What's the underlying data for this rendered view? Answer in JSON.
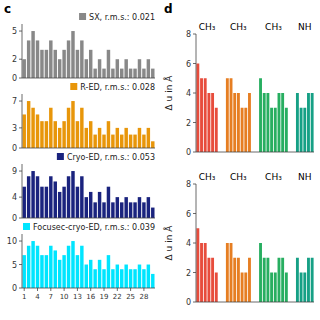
{
  "chart_data": [
    {
      "type": "bar",
      "title": "c",
      "categories": [
        null,
        null,
        null,
        null,
        null,
        null,
        null,
        null,
        null,
        null,
        null,
        null,
        null,
        null,
        null,
        null,
        null,
        null,
        null,
        null,
        null,
        null,
        null,
        null,
        null,
        null,
        null,
        null,
        null,
        null
      ],
      "series": [
        {
          "name": "SX, r.m.s.: 0.021",
          "color": "#888888",
          "values": [
            2,
            4,
            5,
            4,
            3,
            3,
            4,
            3,
            2,
            3,
            4,
            5,
            3,
            4,
            2,
            3,
            1,
            2,
            1,
            3,
            1,
            2,
            1,
            2,
            1,
            1,
            2,
            1,
            2,
            1
          ]
        }
      ],
      "ylim": [
        0,
        5.75
      ],
      "yticks": [
        0,
        2,
        5
      ],
      "legend": "upper right",
      "tick_labels": "y"
    },
    {
      "type": "bar",
      "categories": [
        null,
        null,
        null,
        null,
        null,
        null,
        null,
        null,
        null,
        null,
        null,
        null,
        null,
        null,
        null,
        null,
        null,
        null,
        null,
        null,
        null,
        null,
        null,
        null,
        null,
        null,
        null,
        null,
        null,
        null
      ],
      "series": [
        {
          "name": "R-ED, r.m.s.: 0.028",
          "color": "#E8960A",
          "values": [
            5,
            7,
            6,
            5,
            4,
            4,
            6,
            4,
            3,
            4,
            6,
            7,
            4,
            6,
            3,
            4,
            2,
            3,
            2,
            4,
            2,
            3,
            2,
            3,
            2,
            2,
            3,
            2,
            3,
            1
          ]
        }
      ],
      "ylim": [
        0,
        8.05
      ],
      "yticks": [
        0,
        3,
        7
      ],
      "legend": "upper right",
      "tick_labels": "y"
    },
    {
      "type": "bar",
      "categories": [
        null,
        null,
        null,
        null,
        null,
        null,
        null,
        null,
        null,
        null,
        null,
        null,
        null,
        null,
        null,
        null,
        null,
        null,
        null,
        null,
        null,
        null,
        null,
        null,
        null,
        null,
        null,
        null,
        null,
        null
      ],
      "series": [
        {
          "name": "Cryo-ED, r.m.s.: 0.053",
          "color": "#1a237e",
          "values": [
            6,
            8,
            9,
            8,
            6,
            6,
            8,
            7,
            5,
            6,
            8,
            9,
            6,
            8,
            4,
            5,
            3,
            5,
            3,
            6,
            3,
            4,
            3,
            4,
            3,
            3,
            4,
            3,
            4,
            2
          ]
        }
      ],
      "ylim": [
        0,
        10.35
      ],
      "yticks": [
        0,
        4,
        9
      ],
      "legend": "upper right",
      "tick_labels": "y"
    },
    {
      "type": "bar",
      "categories": [
        "1",
        null,
        null,
        "4",
        null,
        null,
        "7",
        null,
        null,
        "10",
        null,
        null,
        "13",
        null,
        null,
        "16",
        null,
        null,
        "19",
        null,
        null,
        "22",
        null,
        null,
        "25",
        null,
        null,
        "28",
        null,
        null
      ],
      "series": [
        {
          "name": "Focusec-cryo-ED, r.m.s.: 0.039",
          "color": "#00e5ff",
          "values": [
            7,
            9,
            10,
            9,
            7,
            7,
            9,
            8,
            6,
            7,
            9,
            10,
            7,
            9,
            5,
            6,
            4,
            6,
            4,
            7,
            4,
            5,
            4,
            5,
            4,
            4,
            5,
            4,
            5,
            3
          ]
        }
      ],
      "ylim": [
        0,
        11.5
      ],
      "yticks": [
        0,
        5,
        10
      ],
      "legend": "upper right"
    },
    {
      "type": "bar",
      "title": "d",
      "ylabel": "Δ u in Å",
      "series": [
        {
          "name": "CH₃",
          "color": "#e74c3c",
          "values": [
            6,
            5,
            5,
            4,
            4,
            3
          ]
        },
        {
          "name": "CH₃",
          "color": "#e67e22",
          "values": [
            5,
            5,
            4,
            4,
            3,
            3,
            4
          ]
        },
        {
          "name": "CH₃",
          "color": "#27ae60",
          "values": [
            5,
            4,
            4,
            3,
            3,
            4,
            4,
            3
          ]
        },
        {
          "name": "NH",
          "color": "#16a085",
          "values": [
            4,
            3,
            3,
            4,
            4
          ]
        }
      ],
      "ylim": [
        0,
        8
      ],
      "yticks": [
        0,
        2,
        4,
        6,
        8
      ],
      "tick_labels": "y"
    },
    {
      "type": "bar",
      "ylabel": "Δ u in Å",
      "series": [
        {
          "name": "CH₃",
          "color": "#e74c3c",
          "values": [
            5,
            4,
            4,
            3,
            3,
            2
          ]
        },
        {
          "name": "CH₃",
          "color": "#e67e22",
          "values": [
            4,
            4,
            3,
            3,
            2,
            2,
            3
          ]
        },
        {
          "name": "CH₃",
          "color": "#27ae60",
          "values": [
            4,
            3,
            3,
            2,
            2,
            3,
            3,
            2
          ]
        },
        {
          "name": "NH",
          "color": "#16a085",
          "values": [
            3,
            2,
            2,
            3,
            3
          ]
        }
      ],
      "ylim": [
        0,
        8
      ],
      "yticks": [
        0,
        2,
        4,
        6,
        8
      ],
      "tick_labels": "y"
    }
  ]
}
